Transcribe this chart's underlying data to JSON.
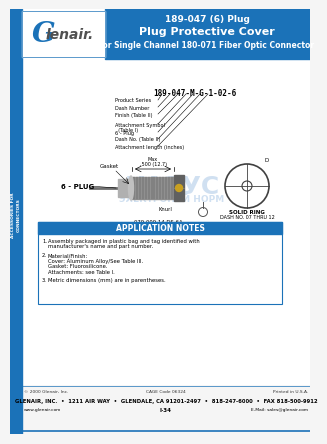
{
  "title_line1": "189-047 (6) Plug",
  "title_line2": "Plug Protective Cover",
  "title_line3": "for Single Channel 180-071 Fiber Optic Connector",
  "header_bg": "#1b72b8",
  "header_text_color": "#ffffff",
  "sidebar_color": "#1b72b8",
  "sidebar_text": "ACCESSORIES FOR\nCONNECTORS",
  "part_number_label": "189-047-M-G-1-02-6",
  "part_labels": [
    "Product Series",
    "Dash Number",
    "Finish (Table II)",
    "Attachment Symbol\n  (Table I)",
    "6 - Plug",
    "Dash No. (Table II)",
    "Attachment length (inches)"
  ],
  "app_notes_title": "APPLICATION NOTES",
  "app_notes_bg": "#1b72b8",
  "app_notes": [
    "Assembly packaged in plastic bag and tag identified with\nmanufacturer's name and part number.",
    "Material/Finish:\nCover: Aluminum Alloy/See Table III.\nGasket: Fluorosilicone.\nAttachments: see Table I.",
    "Metric dimensions (mm) are in parentheses."
  ],
  "footer_line1": "GLENAIR, INC.  •  1211 AIR WAY  •  GLENDALE, CA 91201-2497  •  818-247-6000  •  FAX 818-500-9912",
  "footer_line2": "www.glenair.com",
  "footer_line3": "I-34",
  "footer_line4": "E-Mail: sales@glenair.com",
  "footer_copyright": "© 2000 Glenair, Inc.",
  "footer_cage": "CAGE Code 06324",
  "footer_printed": "Printed in U.S.A.",
  "bg_color": "#f5f5f5",
  "watermark_color": "#c5d9ee",
  "plug_body_color": "#909090",
  "plug_dark_color": "#606060",
  "plug_light_color": "#b0b0b0",
  "gold_color": "#c8a020",
  "ring_color": "#404040"
}
